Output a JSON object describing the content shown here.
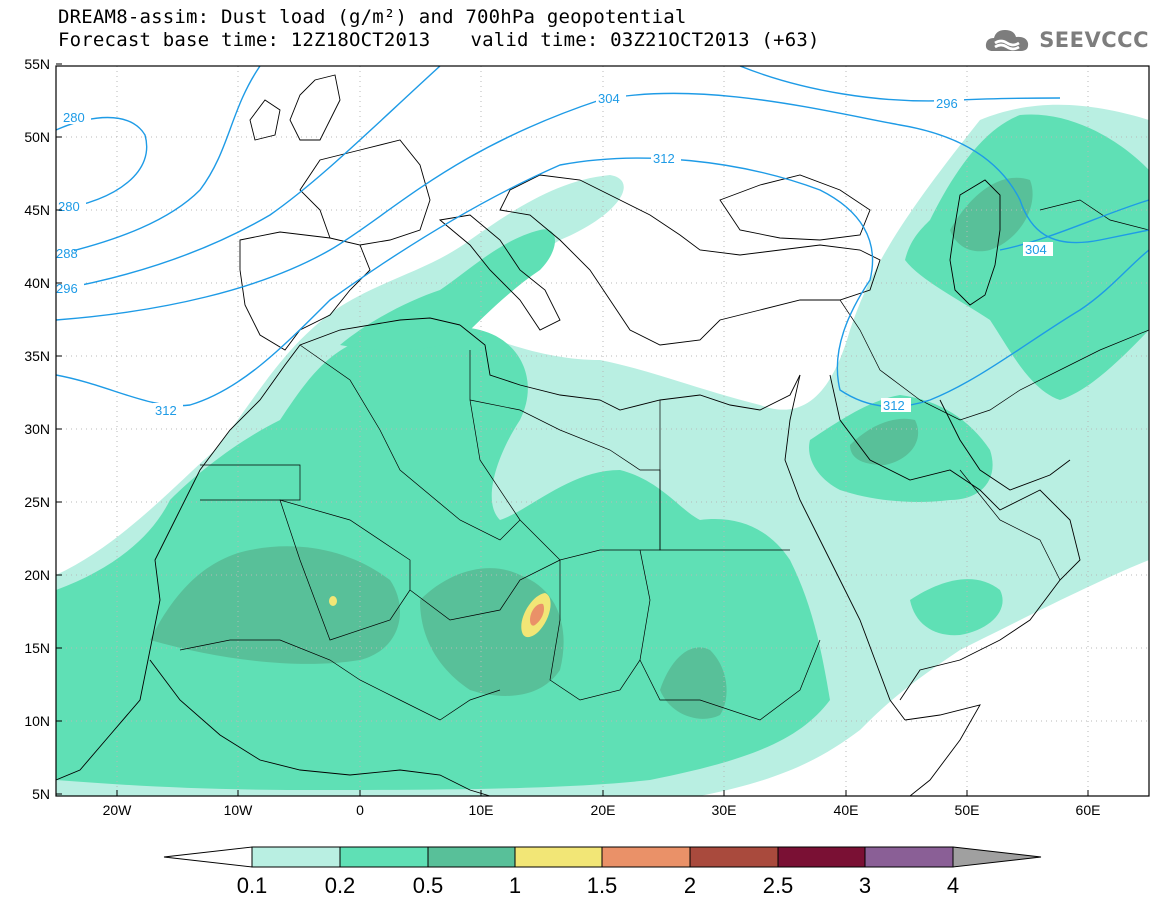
{
  "title": {
    "line1": "DREAM8-assim: Dust load (g/m²) and 700hPa geopotential",
    "line2_base": "Forecast base time: 12Z18OCT2013",
    "line2_valid": "valid time: 03Z21OCT2013 (+63)"
  },
  "logo": {
    "text": "SEEVCCC",
    "icon": "cloud-logo-icon"
  },
  "map": {
    "lat_labels": [
      "55N",
      "50N",
      "45N",
      "40N",
      "35N",
      "30N",
      "25N",
      "20N",
      "15N",
      "10N",
      "5N"
    ],
    "lon_labels": [
      "20W",
      "10W",
      "0",
      "10E",
      "20E",
      "30E",
      "40E",
      "50E",
      "60E"
    ],
    "lat_range": [
      5,
      55
    ],
    "lon_range": [
      -25,
      65
    ],
    "contour_labels": [
      "280",
      "280",
      "288",
      "296",
      "312",
      "304",
      "312",
      "296",
      "304",
      "312"
    ],
    "contour_color": "#1e9be6",
    "grid": "dotted",
    "coastline_color": "#000000"
  },
  "colorbar": {
    "ticks": [
      "0.1",
      "0.2",
      "0.5",
      "1",
      "1.5",
      "2",
      "2.5",
      "3",
      "4"
    ],
    "colors": [
      "#ffffff",
      "#b9efe2",
      "#5fe0b5",
      "#58c099",
      "#f2e676",
      "#ea9168",
      "#a94a3d",
      "#7a1034",
      "#8a5f96",
      "#a0a0a0"
    ]
  },
  "legend": {
    "low": "#b9efe2",
    "mid": "#5fe0b5",
    "high": "#58c099",
    "peak1": "#f2e676",
    "peak2": "#ea9168"
  }
}
